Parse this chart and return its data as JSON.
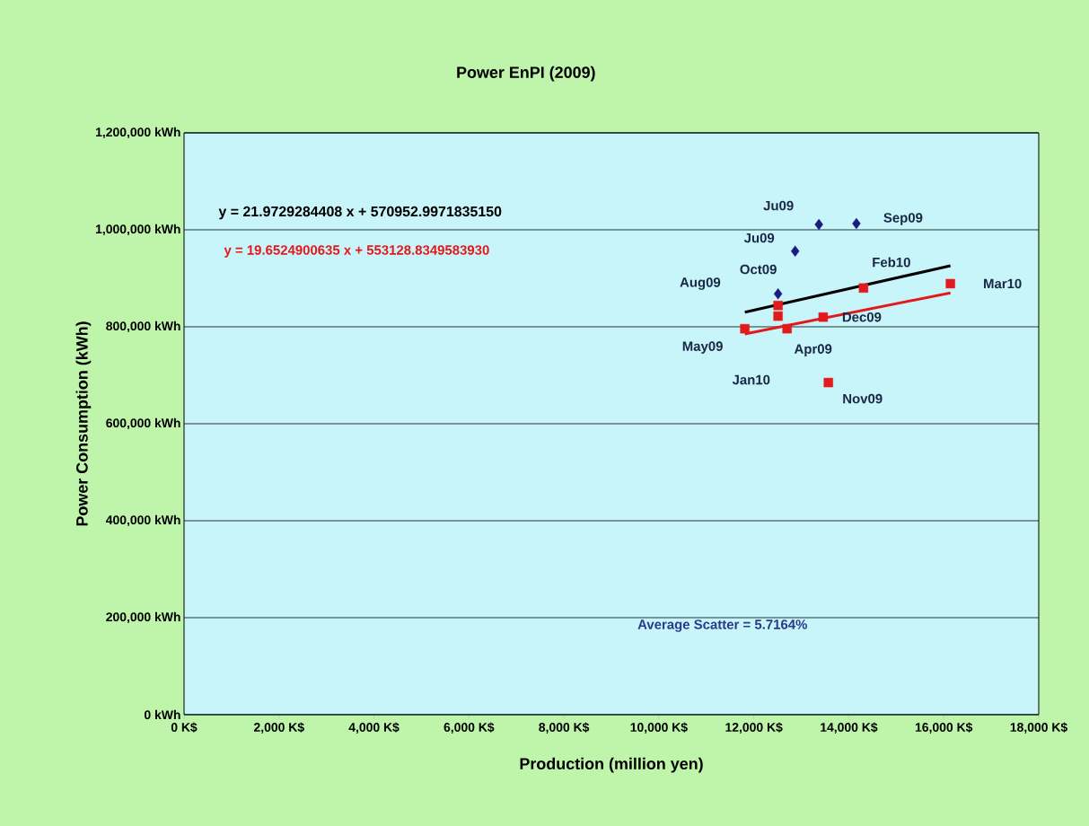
{
  "chart_data": {
    "type": "scatter",
    "title": "Power EnPI (2009)",
    "xlabel": "Production (million  yen)",
    "ylabel": "Power Consumption (kWh)",
    "xlim": [
      0,
      18000
    ],
    "ylim": [
      0,
      1200000
    ],
    "xticks": [
      {
        "value": 0,
        "label": "0 K$"
      },
      {
        "value": 2000,
        "label": "2,000 K$"
      },
      {
        "value": 4000,
        "label": "4,000 K$"
      },
      {
        "value": 6000,
        "label": "6,000 K$"
      },
      {
        "value": 8000,
        "label": "8,000 K$"
      },
      {
        "value": 10000,
        "label": "10,000 K$"
      },
      {
        "value": 12000,
        "label": "12,000 K$"
      },
      {
        "value": 14000,
        "label": "14,000 K$"
      },
      {
        "value": 16000,
        "label": "16,000 K$"
      },
      {
        "value": 18000,
        "label": "18,000 K$"
      }
    ],
    "yticks": [
      {
        "value": 0,
        "label": "0 kWh"
      },
      {
        "value": 200000,
        "label": "200,000 kWh"
      },
      {
        "value": 400000,
        "label": "400,000 kWh"
      },
      {
        "value": 600000,
        "label": "600,000 kWh"
      },
      {
        "value": 800000,
        "label": "800,000 kWh"
      },
      {
        "value": 1000000,
        "label": "1,000,000 kWh"
      },
      {
        "value": 1200000,
        "label": "1,200,000 kWh"
      }
    ],
    "grid": "y",
    "series": [
      {
        "marker": "diamond",
        "color": "#1a1a80",
        "x": [
          13370,
          14160,
          12870,
          12510
        ],
        "values": [
          1011000,
          1013000,
          956000,
          868000
        ]
      },
      {
        "marker": "square",
        "color": "#e31a1c",
        "x": [
          12510,
          12510,
          11810,
          12700,
          13460,
          14310,
          16140,
          13570
        ],
        "values": [
          844000,
          822000,
          796000,
          796000,
          820000,
          880000,
          889000,
          685000
        ]
      },
      {
        "type": "line",
        "marker": "none",
        "color": "#000000",
        "x": [
          11810,
          16140
        ],
        "values": [
          830000,
          926000
        ]
      },
      {
        "type": "line",
        "marker": "none",
        "color": "#e31a1c",
        "x": [
          11810,
          16140
        ],
        "values": [
          785000,
          870000
        ]
      }
    ],
    "annotations": [
      "y = 21.9729284408 x + 570952.9971835150",
      "y = 19.6524900635  x + 553128.8349583930",
      "Average Scatter = 5.7164%",
      "Aug09",
      "Jan10",
      {
        "text": "Ju09",
        "x": 13370,
        "y": 1011000
      },
      {
        "text": "Sep09",
        "x": 14160,
        "y": 1013000
      },
      {
        "text": "Ju09",
        "x": 12870,
        "y": 955500
      },
      {
        "text": "Oct09",
        "x": 12510,
        "y": 868500
      },
      {
        "text": "May09",
        "x": 11810,
        "y": 796000
      },
      {
        "text": "Apr09",
        "x": 12700,
        "y": 796000
      },
      {
        "text": "Dec09",
        "x": 13460,
        "y": 820000
      },
      {
        "text": "Feb10",
        "x": 14310,
        "y": 879600
      },
      {
        "text": "Mar10",
        "x": 16140,
        "y": 889000
      },
      {
        "text": "Nov09",
        "x": 13570,
        "y": 685000
      }
    ]
  }
}
